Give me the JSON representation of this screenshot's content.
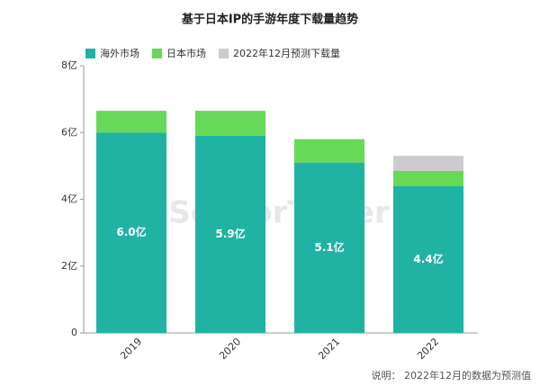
{
  "chart_data": {
    "type": "stacked_bar",
    "title": "基于日本IP的手游年度下载量趋势",
    "categories": [
      "2019",
      "2020",
      "2021",
      "2022"
    ],
    "series": [
      {
        "name": "海外市场",
        "color": "#20b3a3",
        "values": [
          6.0,
          5.9,
          5.1,
          4.4
        ],
        "value_labels": [
          "6.0亿",
          "5.9亿",
          "5.1亿",
          "4.4亿"
        ]
      },
      {
        "name": "日本市场",
        "color": "#66d957",
        "values": [
          0.65,
          0.75,
          0.7,
          0.45
        ]
      },
      {
        "name": "2022年12月预测下载量",
        "color": "#cccccc",
        "values": [
          null,
          null,
          null,
          0.45
        ]
      }
    ],
    "ylim": [
      0,
      8
    ],
    "yticks": [
      0,
      {
        "value": 2,
        "label": "2亿"
      },
      {
        "value": 4,
        "label": "4亿"
      },
      {
        "value": 6,
        "label": "6亿"
      },
      {
        "value": 8,
        "label": "8亿"
      }
    ],
    "watermark": "SensorTower",
    "note": "说明： 2022年12月的数据为预测值"
  }
}
